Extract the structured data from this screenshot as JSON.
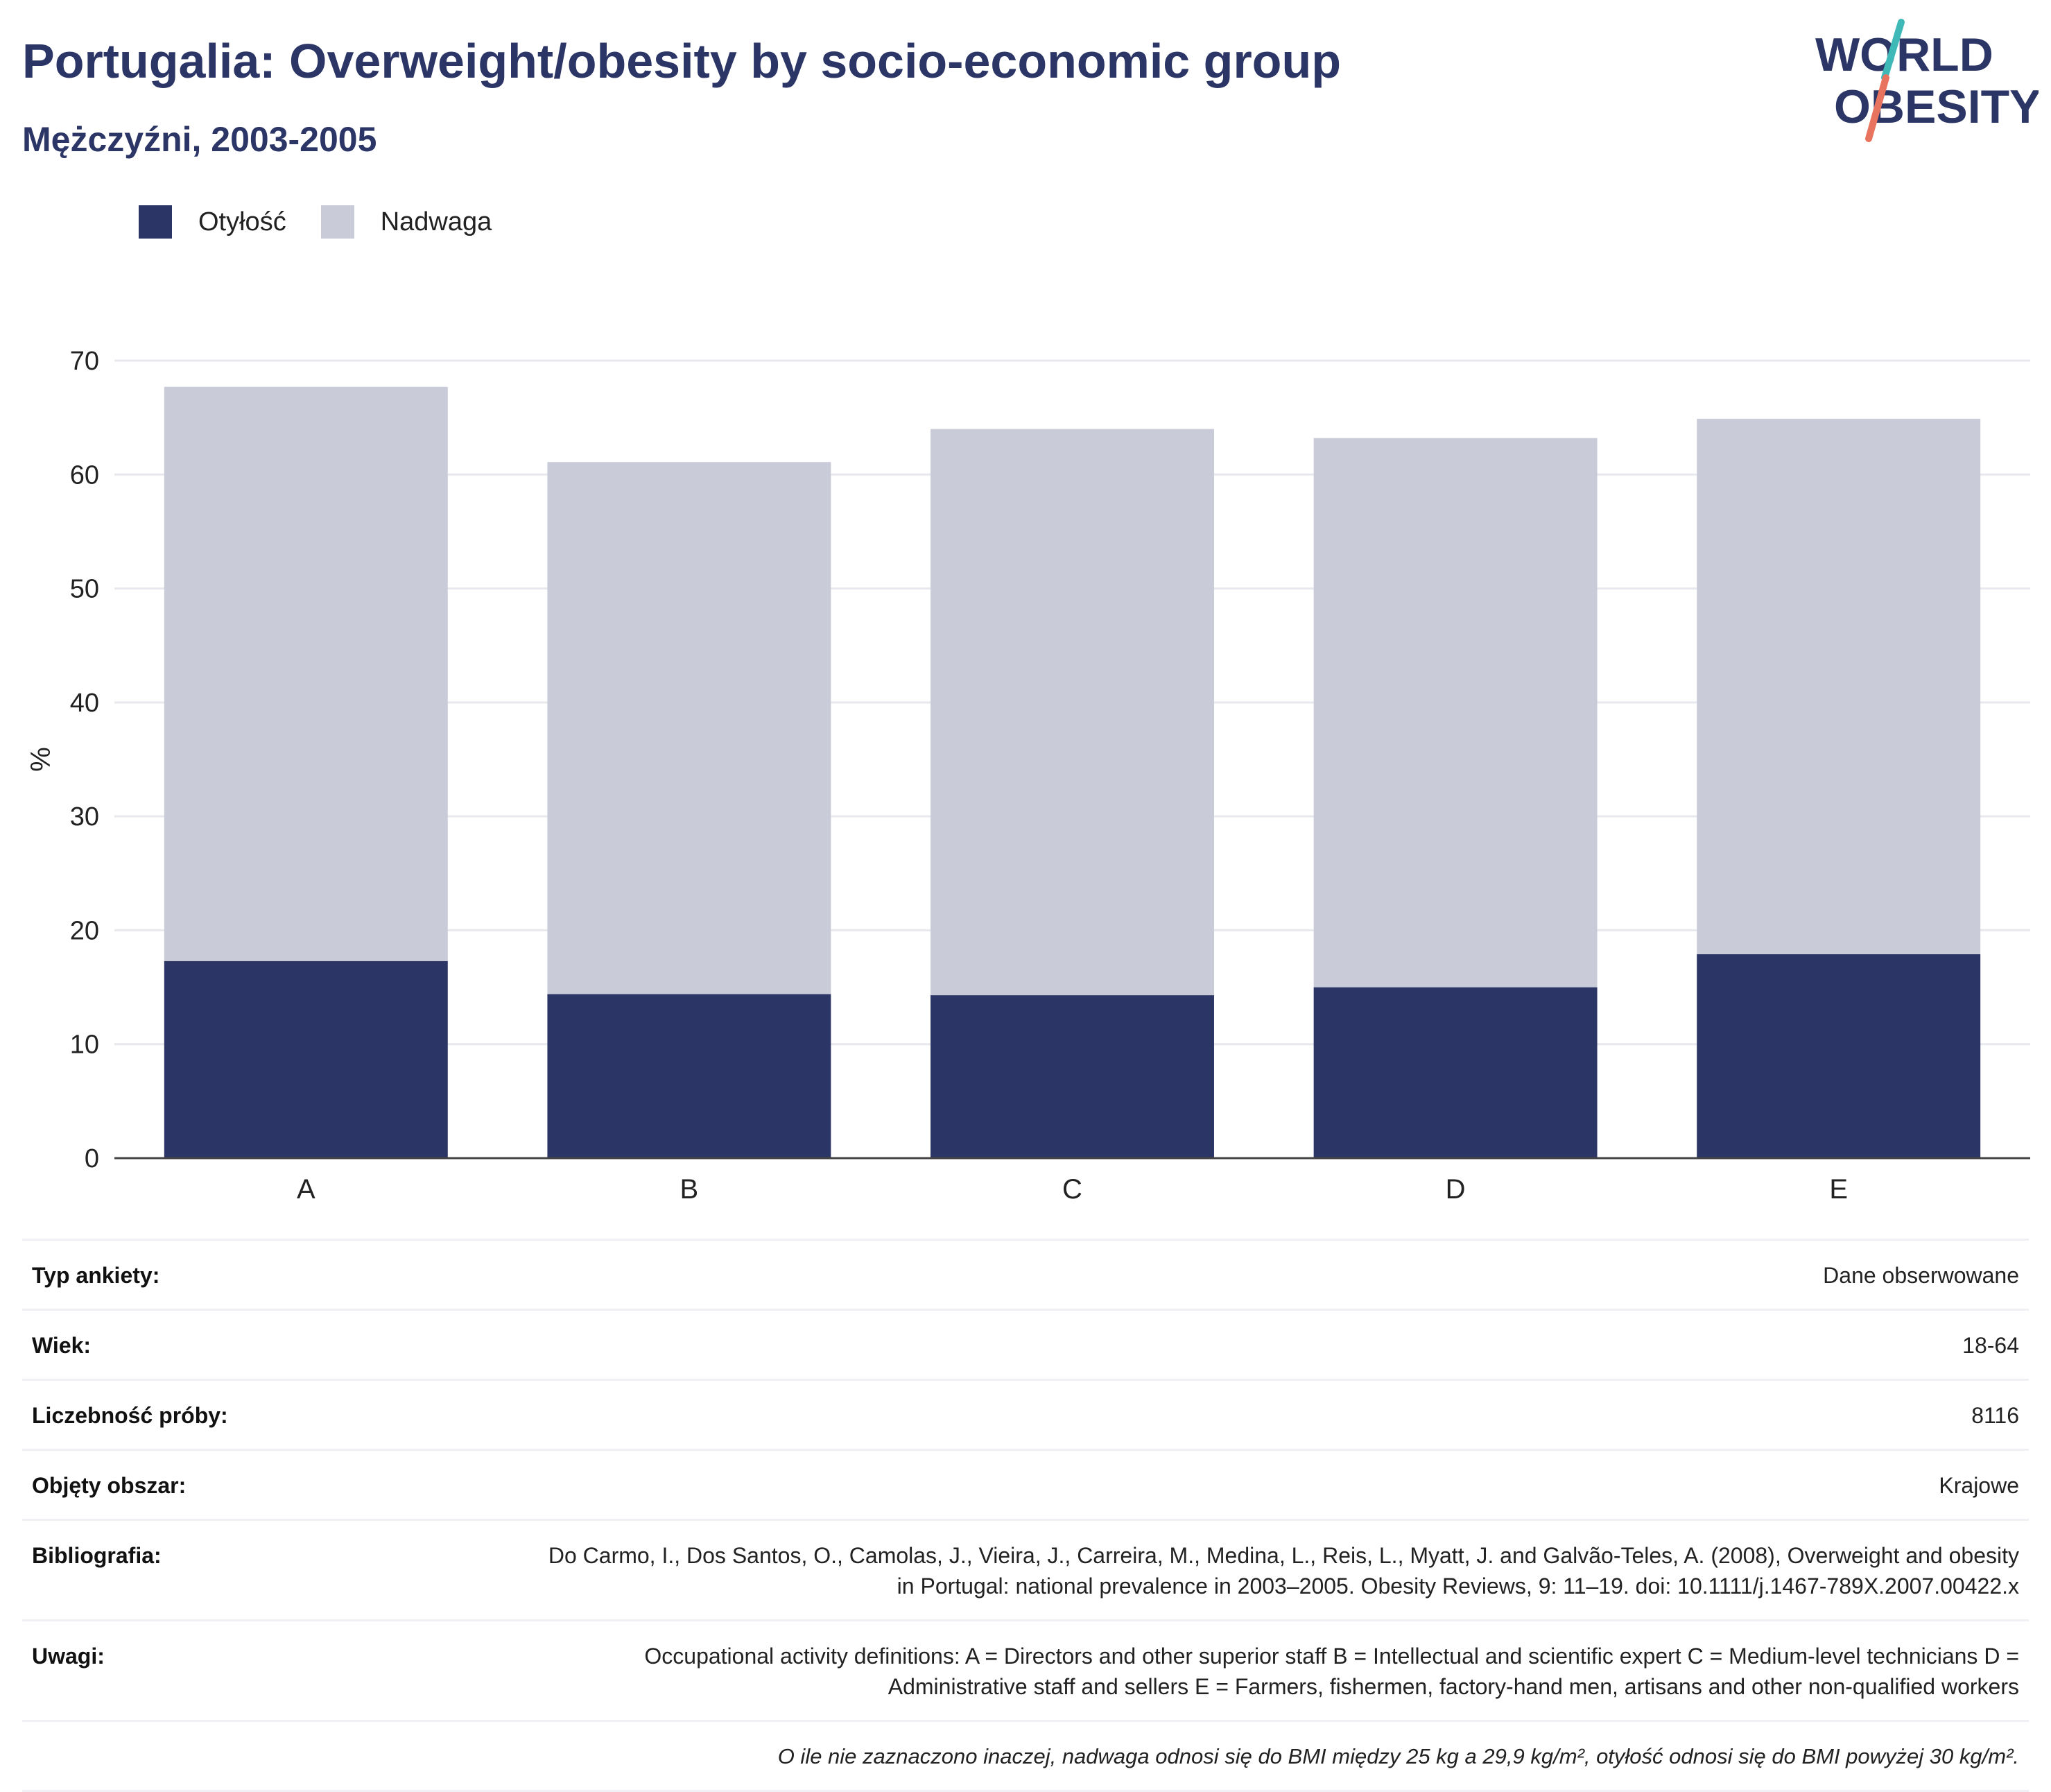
{
  "header": {
    "title": "Portugalia: Overweight/obesity by socio-economic group",
    "subtitle": "Mężczyźni, 2003-2005"
  },
  "logo": {
    "line1": "WORLD",
    "line2": "OBESITY"
  },
  "colors": {
    "obesity": "#2b3566",
    "overweight": "#c9ccd8",
    "logo_text": "#2b3566",
    "logo_slash_top": "#3fb8b8",
    "logo_slash_bottom": "#e8735e"
  },
  "chart_data": {
    "type": "bar",
    "stacked": true,
    "categories": [
      "A",
      "B",
      "C",
      "D",
      "E"
    ],
    "series": [
      {
        "name": "Otyłość",
        "values": [
          17.3,
          14.4,
          14.3,
          15.0,
          17.9
        ]
      },
      {
        "name": "Nadwaga",
        "values": [
          50.4,
          46.7,
          49.7,
          48.2,
          47.0
        ]
      }
    ],
    "ylabel": "%",
    "xlabel": "",
    "ylim": [
      0,
      70
    ],
    "yticks": [
      0,
      10,
      20,
      30,
      40,
      50,
      60,
      70
    ],
    "grid": true,
    "legend_position": "top-left"
  },
  "info": {
    "rows": [
      {
        "label": "Typ ankiety:",
        "value": "Dane obserwowane"
      },
      {
        "label": "Wiek:",
        "value": "18-64"
      },
      {
        "label": "Liczebność próby:",
        "value": "8116"
      },
      {
        "label": "Objęty obszar:",
        "value": "Krajowe"
      },
      {
        "label": "Bibliografia:",
        "value": "Do Carmo, I., Dos Santos, O., Camolas, J., Vieira, J., Carreira, M., Medina, L., Reis, L., Myatt, J. and Galvão-Teles, A. (2008), Overweight and obesity in Portugal: national prevalence in 2003–2005. Obesity Reviews, 9: 11–19. doi: 10.1111/j.1467-789X.2007.00422.x"
      },
      {
        "label": "Uwagi:",
        "value": "Occupational activity definitions: A = Directors and other superior staff B = Intellectual and scientific expert C = Medium-level technicians D = Administrative staff and sellers E = Farmers, fishermen, factory-hand men, artisans and other non-qualified workers"
      }
    ],
    "footnote": "O ile nie zaznaczono inaczej, nadwaga odnosi się do BMI między 25 kg a 29,9 kg/m², otyłość odnosi się do BMI powyżej 30 kg/m²."
  }
}
